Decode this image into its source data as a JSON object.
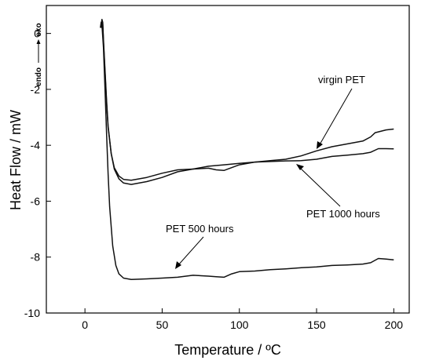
{
  "chart_data": {
    "type": "line",
    "xlabel": "Temperature / ºC",
    "ylabel": "Heat Flow / mW",
    "xlim": [
      -25,
      210
    ],
    "ylim": [
      -10,
      1
    ],
    "xticks": [
      0,
      50,
      100,
      150,
      200
    ],
    "yticks": [
      0,
      -2,
      -4,
      -6,
      -8,
      -10
    ],
    "grid": false,
    "direction_label": {
      "endo": "endo",
      "exo": "exo"
    },
    "series": [
      {
        "name": "virgin PET",
        "x": [
          10.5,
          11,
          11.5,
          12,
          13,
          14,
          15,
          17,
          19,
          22,
          25,
          30,
          40,
          50,
          60,
          70,
          80,
          90,
          100,
          110,
          120,
          130,
          140,
          150,
          160,
          170,
          180,
          185,
          188,
          195,
          200
        ],
        "y": [
          0.3,
          0.5,
          0.4,
          -0.2,
          -1.3,
          -2.4,
          -3.3,
          -4.3,
          -4.85,
          -5.2,
          -5.35,
          -5.4,
          -5.3,
          -5.15,
          -4.95,
          -4.85,
          -4.75,
          -4.7,
          -4.65,
          -4.6,
          -4.55,
          -4.5,
          -4.38,
          -4.2,
          -4.05,
          -3.95,
          -3.85,
          -3.7,
          -3.55,
          -3.45,
          -3.42
        ]
      },
      {
        "name": "PET 1000 hours",
        "x": [
          10.5,
          11,
          11.5,
          12,
          13,
          14,
          15,
          17,
          19,
          22,
          25,
          30,
          40,
          50,
          60,
          70,
          80,
          85,
          90,
          95,
          100,
          110,
          120,
          130,
          140,
          150,
          160,
          170,
          180,
          185,
          190,
          195,
          200
        ],
        "y": [
          0.2,
          0.45,
          0.35,
          -0.3,
          -1.4,
          -2.5,
          -3.35,
          -4.3,
          -4.8,
          -5.1,
          -5.22,
          -5.25,
          -5.15,
          -5.0,
          -4.88,
          -4.85,
          -4.82,
          -4.88,
          -4.9,
          -4.8,
          -4.7,
          -4.6,
          -4.58,
          -4.56,
          -4.55,
          -4.5,
          -4.4,
          -4.35,
          -4.3,
          -4.25,
          -4.12,
          -4.12,
          -4.13
        ]
      },
      {
        "name": "PET 500 hours",
        "x": [
          10,
          10.5,
          11,
          12,
          13,
          14,
          15,
          16,
          18,
          20,
          22,
          25,
          30,
          40,
          50,
          60,
          70,
          80,
          85,
          90,
          95,
          100,
          110,
          120,
          130,
          140,
          150,
          160,
          170,
          180,
          185,
          190,
          195,
          200
        ],
        "y": [
          0.2,
          0.4,
          0.3,
          -0.5,
          -2.0,
          -3.6,
          -5.0,
          -6.2,
          -7.6,
          -8.3,
          -8.6,
          -8.75,
          -8.8,
          -8.78,
          -8.75,
          -8.72,
          -8.65,
          -8.68,
          -8.7,
          -8.72,
          -8.6,
          -8.52,
          -8.5,
          -8.45,
          -8.42,
          -8.38,
          -8.35,
          -8.3,
          -8.28,
          -8.25,
          -8.2,
          -8.05,
          -8.07,
          -8.1
        ]
      }
    ],
    "annotations": [
      {
        "text": "virgin PET",
        "target_series": "virgin PET"
      },
      {
        "text": "PET 1000 hours",
        "target_series": "PET 1000 hours"
      },
      {
        "text": "PET 500 hours",
        "target_series": "PET 500 hours"
      }
    ]
  }
}
